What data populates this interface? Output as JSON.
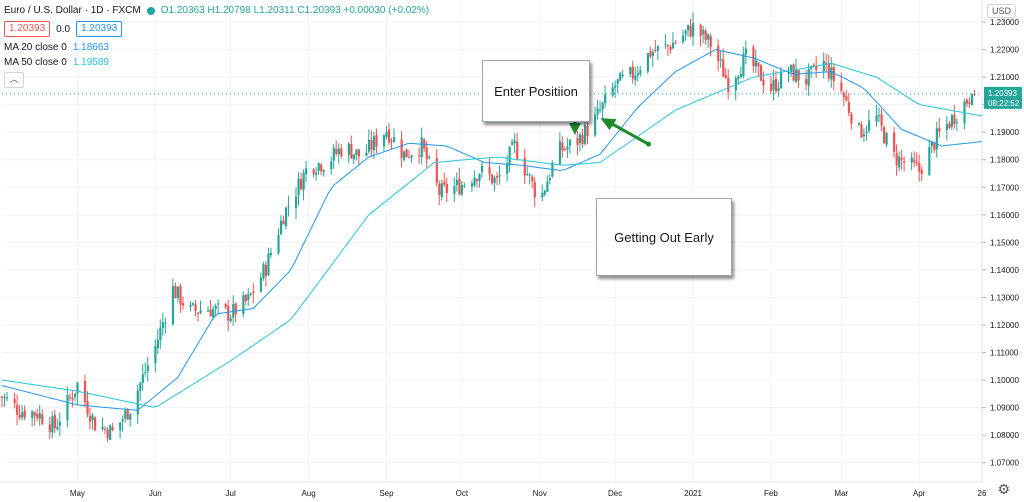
{
  "legend": {
    "title": "Euro / U.S. Dollar · 1D · FXCM",
    "open": "O1.20363",
    "high": "H1.20798",
    "low": "L1.20311",
    "close": "C1.20393",
    "change": "+0.00030 (+0.02%)",
    "bid": "1.20393",
    "spread": "0.0",
    "ask": "1.20393",
    "ma20_label": "MA 20 close 0",
    "ma20_value": "1.18663",
    "ma50_label": "MA 50 close 0",
    "ma50_value": "1.19589",
    "collapse_icon": "chevron-up-icon"
  },
  "currency_button": "USD",
  "price_tag": {
    "price": "1.20393",
    "countdown": "08:22:52"
  },
  "annotations": {
    "enter": "Enter Positiion",
    "exit": "Getting Out Early"
  },
  "colors": {
    "up": "#26a69a",
    "down": "#ef5350",
    "ma20": "#2196f3",
    "ma50": "#26c6da",
    "arrow": "#1a8a2a"
  },
  "chart_data": {
    "type": "candlestick",
    "y_tick_labels": [
      "1.23000",
      "1.22000",
      "1.21000",
      "1.20000",
      "1.19000",
      "1.18000",
      "1.17000",
      "1.16000",
      "1.15000",
      "1.14000",
      "1.13000",
      "1.12000",
      "1.11000",
      "1.10000",
      "1.09000",
      "1.08000",
      "1.07000"
    ],
    "x_tick_labels": [
      "May",
      "Jun",
      "Jul",
      "Aug",
      "Sep",
      "Oct",
      "Nov",
      "Dec",
      "2021",
      "Feb",
      "Mar",
      "Apr",
      "26"
    ],
    "ylim": [
      1.063,
      1.238
    ],
    "x_range": [
      "2020-04-01",
      "2021-04-26"
    ],
    "price_line": 1.20393,
    "grid": true,
    "close_anchors": [
      [
        "2020-04-01",
        1.094
      ],
      [
        "2020-04-08",
        1.089
      ],
      [
        "2020-04-15",
        1.088
      ],
      [
        "2020-04-22",
        1.083
      ],
      [
        "2020-05-01",
        1.0985
      ],
      [
        "2020-05-08",
        1.084
      ],
      [
        "2020-05-15",
        1.081
      ],
      [
        "2020-05-22",
        1.09
      ],
      [
        "2020-06-01",
        1.112
      ],
      [
        "2020-06-08",
        1.133
      ],
      [
        "2020-06-15",
        1.125
      ],
      [
        "2020-06-22",
        1.126
      ],
      [
        "2020-07-01",
        1.124
      ],
      [
        "2020-07-08",
        1.129
      ],
      [
        "2020-07-15",
        1.141
      ],
      [
        "2020-07-22",
        1.16
      ],
      [
        "2020-08-01",
        1.178
      ],
      [
        "2020-08-08",
        1.179
      ],
      [
        "2020-08-15",
        1.185
      ],
      [
        "2020-08-22",
        1.181
      ],
      [
        "2020-09-01",
        1.191
      ],
      [
        "2020-09-08",
        1.182
      ],
      [
        "2020-09-15",
        1.185
      ],
      [
        "2020-09-22",
        1.168
      ],
      [
        "2020-10-01",
        1.171
      ],
      [
        "2020-10-08",
        1.176
      ],
      [
        "2020-10-15",
        1.172
      ],
      [
        "2020-10-22",
        1.185
      ],
      [
        "2020-11-01",
        1.165
      ],
      [
        "2020-11-08",
        1.183
      ],
      [
        "2020-11-15",
        1.186
      ],
      [
        "2020-11-22",
        1.193
      ],
      [
        "2020-12-01",
        1.207
      ],
      [
        "2020-12-08",
        1.211
      ],
      [
        "2020-12-15",
        1.219
      ],
      [
        "2020-12-22",
        1.221
      ],
      [
        "2021-01-01",
        1.228
      ],
      [
        "2021-01-08",
        1.222
      ],
      [
        "2021-01-15",
        1.208
      ],
      [
        "2021-01-22",
        1.217
      ],
      [
        "2021-02-01",
        1.206
      ],
      [
        "2021-02-08",
        1.212
      ],
      [
        "2021-02-15",
        1.209
      ],
      [
        "2021-02-22",
        1.215
      ],
      [
        "2021-03-01",
        1.205
      ],
      [
        "2021-03-08",
        1.19
      ],
      [
        "2021-03-15",
        1.195
      ],
      [
        "2021-03-22",
        1.181
      ],
      [
        "2021-04-01",
        1.176
      ],
      [
        "2021-04-08",
        1.188
      ],
      [
        "2021-04-15",
        1.196
      ],
      [
        "2021-04-22",
        1.2039
      ]
    ],
    "ma20_points": [
      [
        "2020-04-01",
        1.098
      ],
      [
        "2020-05-01",
        1.091
      ],
      [
        "2020-05-25",
        1.089
      ],
      [
        "2020-06-10",
        1.101
      ],
      [
        "2020-06-25",
        1.124
      ],
      [
        "2020-07-10",
        1.126
      ],
      [
        "2020-07-25",
        1.14
      ],
      [
        "2020-08-10",
        1.17
      ],
      [
        "2020-08-25",
        1.181
      ],
      [
        "2020-09-10",
        1.186
      ],
      [
        "2020-09-25",
        1.185
      ],
      [
        "2020-10-10",
        1.179
      ],
      [
        "2020-10-25",
        1.178
      ],
      [
        "2020-11-10",
        1.176
      ],
      [
        "2020-11-25",
        1.182
      ],
      [
        "2020-12-10",
        1.199
      ],
      [
        "2020-12-25",
        1.212
      ],
      [
        "2021-01-10",
        1.22
      ],
      [
        "2021-01-25",
        1.217
      ],
      [
        "2021-02-10",
        1.211
      ],
      [
        "2021-02-25",
        1.212
      ],
      [
        "2021-03-10",
        1.206
      ],
      [
        "2021-03-25",
        1.191
      ],
      [
        "2021-04-10",
        1.185
      ],
      [
        "2021-04-26",
        1.1866
      ]
    ],
    "ma50_points": [
      [
        "2020-04-01",
        1.1
      ],
      [
        "2020-05-01",
        1.096
      ],
      [
        "2020-06-01",
        1.09
      ],
      [
        "2020-07-01",
        1.107
      ],
      [
        "2020-07-25",
        1.122
      ],
      [
        "2020-08-25",
        1.16
      ],
      [
        "2020-09-20",
        1.179
      ],
      [
        "2020-10-15",
        1.181
      ],
      [
        "2020-11-10",
        1.178
      ],
      [
        "2020-11-25",
        1.179
      ],
      [
        "2020-12-25",
        1.198
      ],
      [
        "2021-01-25",
        1.21
      ],
      [
        "2021-02-25",
        1.215
      ],
      [
        "2021-03-15",
        1.21
      ],
      [
        "2021-04-01",
        1.2
      ],
      [
        "2021-04-26",
        1.1959
      ]
    ],
    "enter_date": "2020-11-15",
    "exit_date": "2020-11-24"
  }
}
